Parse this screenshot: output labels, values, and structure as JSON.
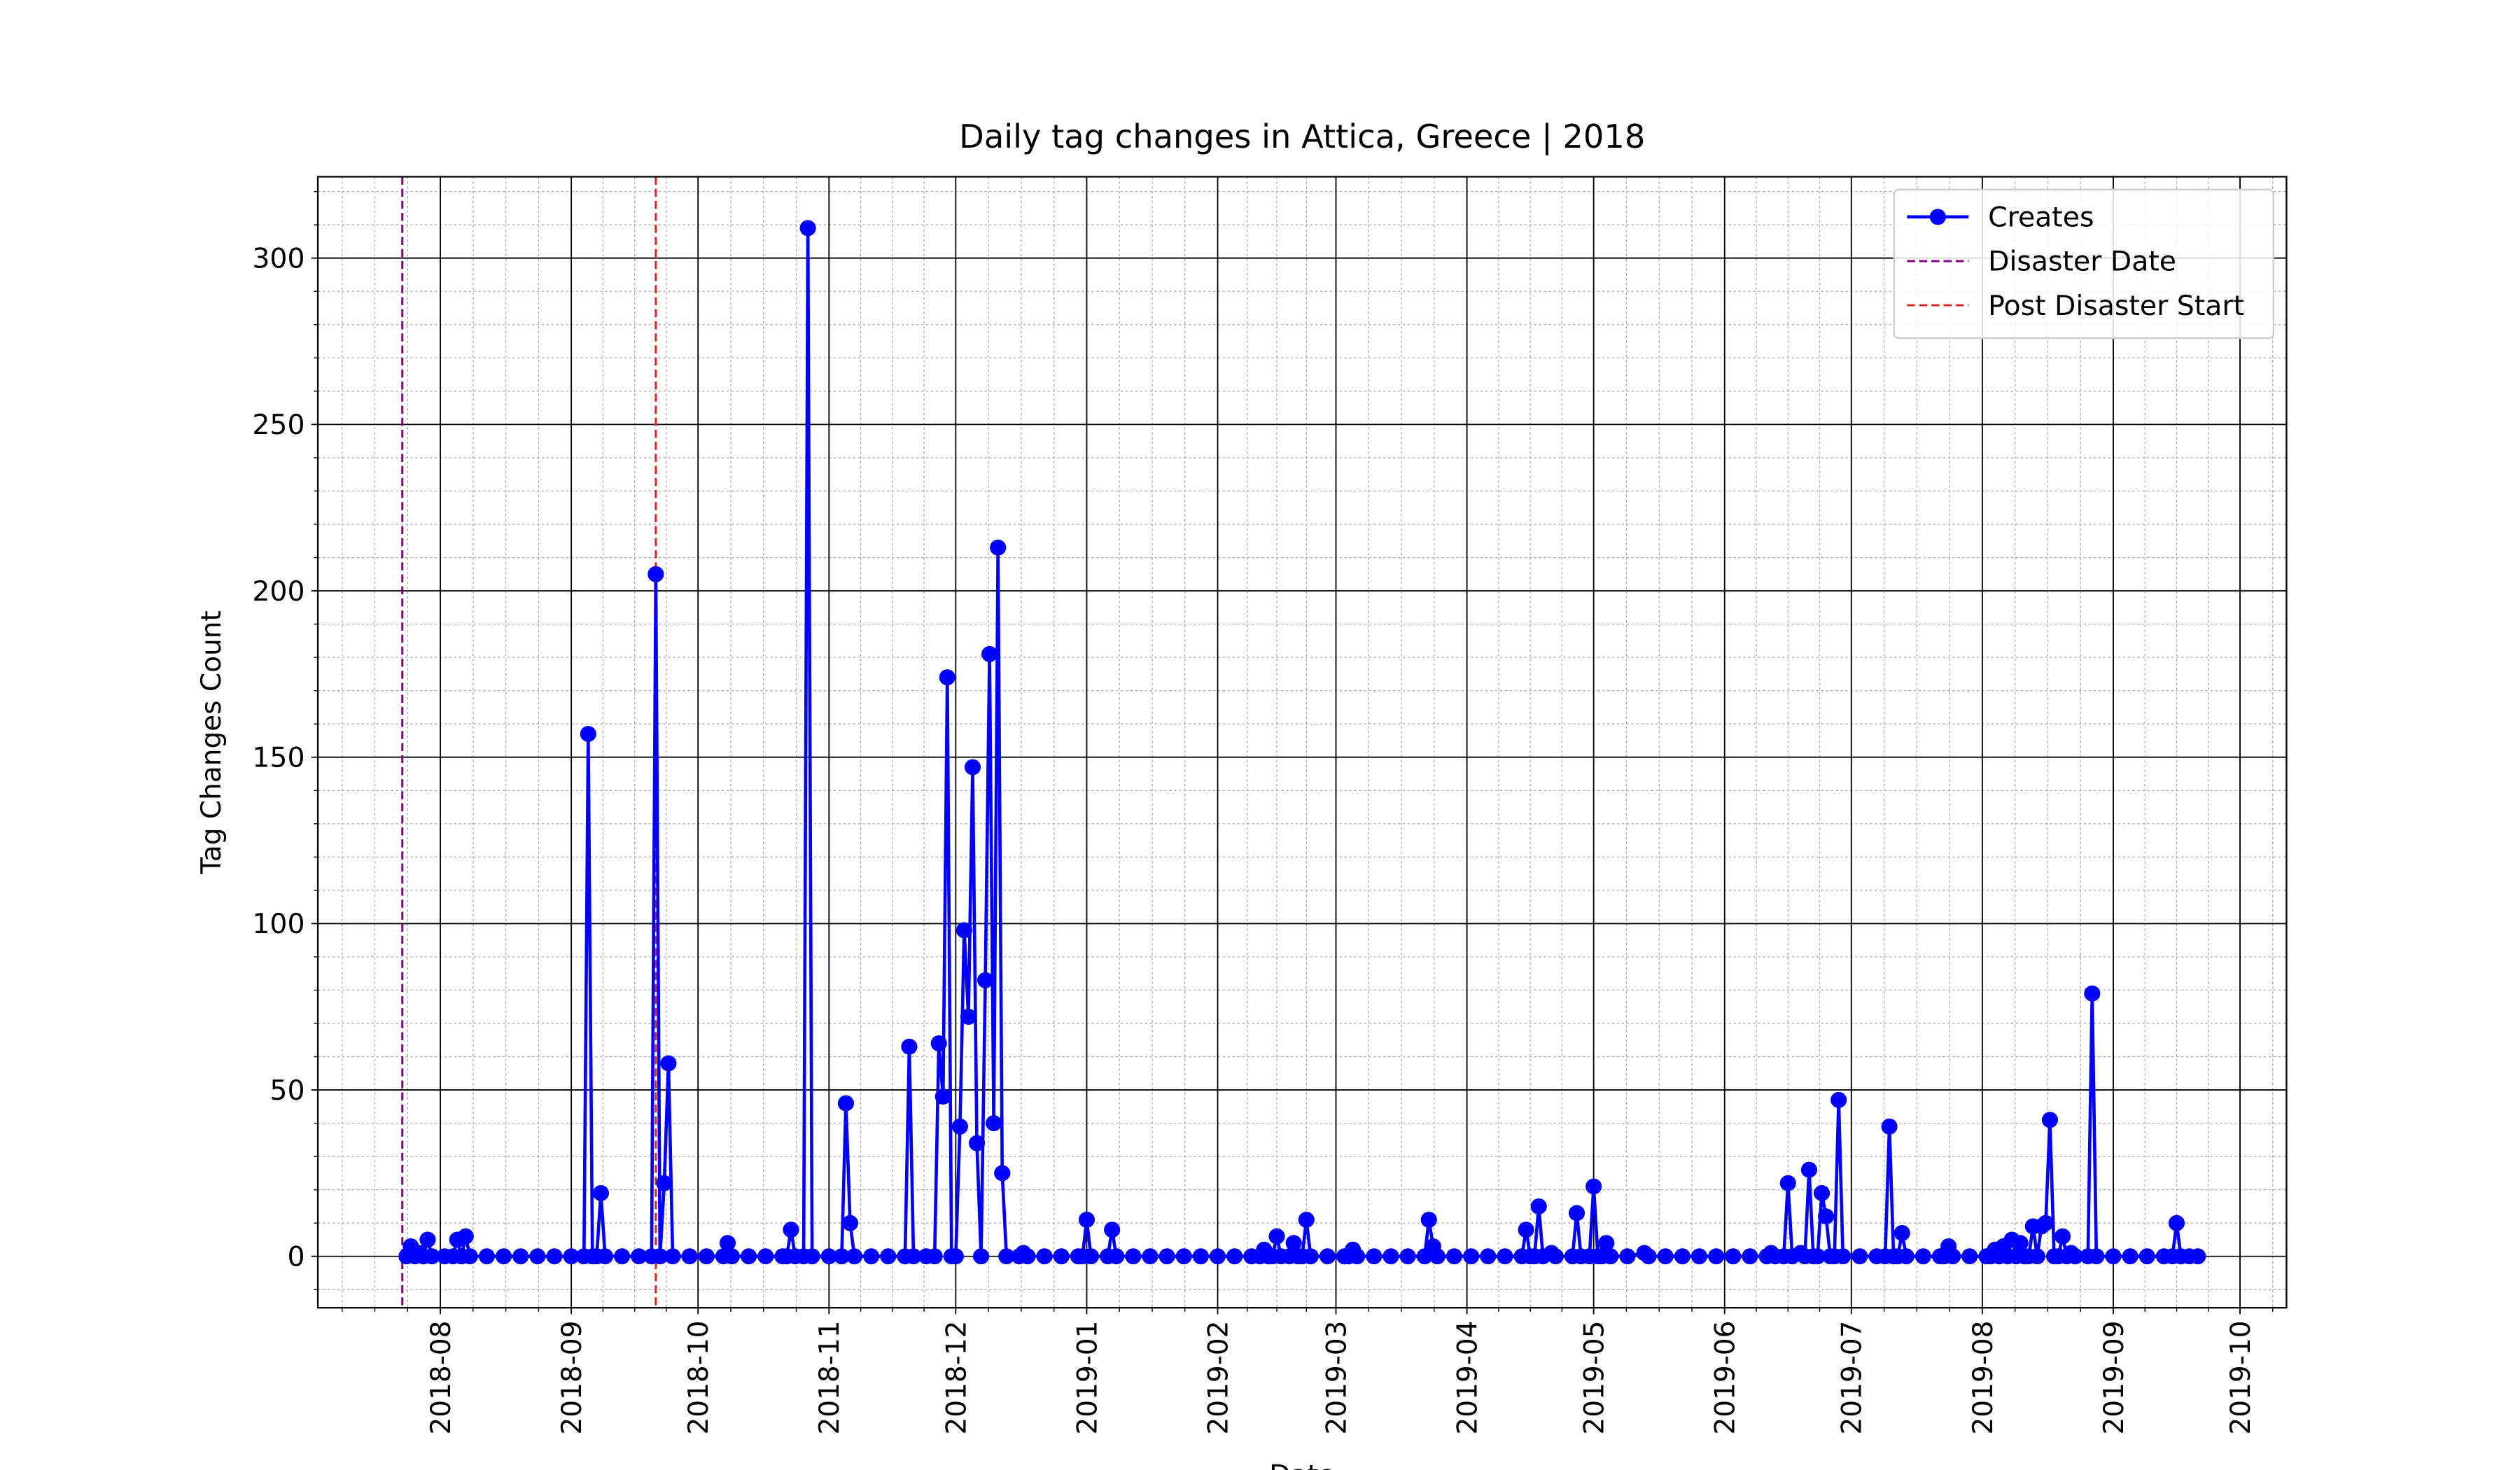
{
  "chart_data": {
    "type": "line",
    "title": "Daily tag changes in Attica, Greece | 2018",
    "x_label": "Date",
    "y_label": "Tag Changes Count",
    "x": [
      "2018-07-24",
      "2018-07-25",
      "2018-07-26",
      "2018-07-27",
      "2018-07-28",
      "2018-07-29",
      "2018-07-30",
      "2018-08-02",
      "2018-08-04",
      "2018-08-05",
      "2018-08-06",
      "2018-08-07",
      "2018-08-08",
      "2018-08-12",
      "2018-08-16",
      "2018-08-20",
      "2018-08-24",
      "2018-08-28",
      "2018-09-01",
      "2018-09-04",
      "2018-09-05",
      "2018-09-06",
      "2018-09-07",
      "2018-09-08",
      "2018-09-09",
      "2018-09-13",
      "2018-09-17",
      "2018-09-20",
      "2018-09-21",
      "2018-09-22",
      "2018-09-23",
      "2018-09-24",
      "2018-09-25",
      "2018-09-29",
      "2018-10-03",
      "2018-10-07",
      "2018-10-08",
      "2018-10-09",
      "2018-10-13",
      "2018-10-17",
      "2018-10-21",
      "2018-10-22",
      "2018-10-23",
      "2018-10-24",
      "2018-10-26",
      "2018-10-27",
      "2018-10-28",
      "2018-11-01",
      "2018-11-04",
      "2018-11-05",
      "2018-11-06",
      "2018-11-07",
      "2018-11-11",
      "2018-11-15",
      "2018-11-19",
      "2018-11-20",
      "2018-11-21",
      "2018-11-24",
      "2018-11-26",
      "2018-11-27",
      "2018-11-28",
      "2018-11-29",
      "2018-11-30",
      "2018-12-01",
      "2018-12-02",
      "2018-12-03",
      "2018-12-04",
      "2018-12-05",
      "2018-12-06",
      "2018-12-07",
      "2018-12-08",
      "2018-12-09",
      "2018-12-10",
      "2018-12-11",
      "2018-12-12",
      "2018-12-13",
      "2018-12-16",
      "2018-12-17",
      "2018-12-18",
      "2018-12-22",
      "2018-12-26",
      "2018-12-30",
      "2018-12-31",
      "2019-01-01",
      "2019-01-02",
      "2019-01-06",
      "2019-01-07",
      "2019-01-08",
      "2019-01-12",
      "2019-01-16",
      "2019-01-20",
      "2019-01-24",
      "2019-01-28",
      "2019-02-01",
      "2019-02-05",
      "2019-02-09",
      "2019-02-11",
      "2019-02-12",
      "2019-02-13",
      "2019-02-14",
      "2019-02-15",
      "2019-02-16",
      "2019-02-18",
      "2019-02-19",
      "2019-02-20",
      "2019-02-21",
      "2019-02-22",
      "2019-02-23",
      "2019-02-27",
      "2019-03-03",
      "2019-03-04",
      "2019-03-05",
      "2019-03-06",
      "2019-03-10",
      "2019-03-14",
      "2019-03-18",
      "2019-03-22",
      "2019-03-23",
      "2019-03-24",
      "2019-03-25",
      "2019-03-29",
      "2019-04-02",
      "2019-04-06",
      "2019-04-10",
      "2019-04-14",
      "2019-04-15",
      "2019-04-16",
      "2019-04-17",
      "2019-04-18",
      "2019-04-19",
      "2019-04-21",
      "2019-04-22",
      "2019-04-26",
      "2019-04-27",
      "2019-04-28",
      "2019-04-30",
      "2019-05-01",
      "2019-05-02",
      "2019-05-03",
      "2019-05-04",
      "2019-05-05",
      "2019-05-09",
      "2019-05-13",
      "2019-05-14",
      "2019-05-18",
      "2019-05-22",
      "2019-05-26",
      "2019-05-30",
      "2019-06-03",
      "2019-06-07",
      "2019-06-11",
      "2019-06-12",
      "2019-06-13",
      "2019-06-15",
      "2019-06-16",
      "2019-06-17",
      "2019-06-19",
      "2019-06-20",
      "2019-06-21",
      "2019-06-22",
      "2019-06-23",
      "2019-06-24",
      "2019-06-25",
      "2019-06-26",
      "2019-06-27",
      "2019-06-28",
      "2019-06-29",
      "2019-07-03",
      "2019-07-07",
      "2019-07-09",
      "2019-07-10",
      "2019-07-11",
      "2019-07-12",
      "2019-07-13",
      "2019-07-14",
      "2019-07-18",
      "2019-07-22",
      "2019-07-23",
      "2019-07-24",
      "2019-07-25",
      "2019-07-29",
      "2019-08-02",
      "2019-08-03",
      "2019-08-04",
      "2019-08-05",
      "2019-08-06",
      "2019-08-07",
      "2019-08-08",
      "2019-08-09",
      "2019-08-10",
      "2019-08-11",
      "2019-08-12",
      "2019-08-13",
      "2019-08-14",
      "2019-08-15",
      "2019-08-16",
      "2019-08-17",
      "2019-08-18",
      "2019-08-19",
      "2019-08-20",
      "2019-08-21",
      "2019-08-22",
      "2019-08-23",
      "2019-08-26",
      "2019-08-27",
      "2019-08-28",
      "2019-09-01",
      "2019-09-05",
      "2019-09-09",
      "2019-09-13",
      "2019-09-15",
      "2019-09-16",
      "2019-09-17",
      "2019-09-19",
      "2019-09-21"
    ],
    "series": [
      {
        "name": "Creates",
        "color": "#0000ff",
        "values": [
          0,
          3,
          0,
          1,
          0,
          5,
          0,
          0,
          0,
          5,
          0,
          6,
          0,
          0,
          0,
          0,
          0,
          0,
          0,
          0,
          157,
          0,
          0,
          19,
          0,
          0,
          0,
          0,
          205,
          0,
          22,
          58,
          0,
          0,
          0,
          0,
          4,
          0,
          0,
          0,
          0,
          0,
          8,
          0,
          0,
          309,
          0,
          0,
          0,
          46,
          10,
          0,
          0,
          0,
          0,
          63,
          0,
          0,
          0,
          64,
          48,
          174,
          0,
          0,
          39,
          98,
          72,
          147,
          34,
          0,
          83,
          181,
          40,
          213,
          25,
          0,
          0,
          1,
          0,
          0,
          0,
          0,
          0,
          11,
          0,
          0,
          8,
          0,
          0,
          0,
          0,
          0,
          0,
          0,
          0,
          0,
          0,
          2,
          0,
          0,
          6,
          0,
          0,
          4,
          0,
          0,
          11,
          0,
          0,
          0,
          0,
          2,
          0,
          0,
          0,
          0,
          0,
          11,
          3,
          0,
          0,
          0,
          0,
          0,
          0,
          8,
          0,
          0,
          15,
          0,
          1,
          0,
          0,
          13,
          0,
          0,
          21,
          0,
          0,
          4,
          0,
          0,
          1,
          0,
          0,
          0,
          0,
          0,
          0,
          0,
          0,
          1,
          0,
          0,
          22,
          0,
          1,
          0,
          26,
          0,
          0,
          19,
          12,
          0,
          0,
          47,
          0,
          0,
          0,
          0,
          39,
          0,
          0,
          7,
          0,
          0,
          0,
          0,
          3,
          0,
          0,
          0,
          0,
          2,
          0,
          3,
          0,
          5,
          0,
          4,
          0,
          0,
          9,
          0,
          9,
          10,
          41,
          0,
          0,
          6,
          0,
          1,
          0,
          0,
          79,
          0,
          0,
          0,
          0,
          0,
          0,
          10,
          0,
          0,
          0
        ]
      }
    ],
    "vlines": [
      {
        "name": "Disaster Date",
        "x": "2018-07-23",
        "color": "#800080"
      },
      {
        "name": "Post Disaster Start",
        "x": "2018-09-21",
        "color": "#d62728"
      }
    ],
    "xlim": [
      "2018-07-03",
      "2019-10-12"
    ],
    "ylim": [
      -15.45,
      324.45
    ],
    "xticks": [
      {
        "value": "2018-08-01",
        "label": "2018-08"
      },
      {
        "value": "2018-09-01",
        "label": "2018-09"
      },
      {
        "value": "2018-10-01",
        "label": "2018-10"
      },
      {
        "value": "2018-11-01",
        "label": "2018-11"
      },
      {
        "value": "2018-12-01",
        "label": "2018-12"
      },
      {
        "value": "2019-01-01",
        "label": "2019-01"
      },
      {
        "value": "2019-02-01",
        "label": "2019-02"
      },
      {
        "value": "2019-03-01",
        "label": "2019-03"
      },
      {
        "value": "2019-04-01",
        "label": "2019-04"
      },
      {
        "value": "2019-05-01",
        "label": "2019-05"
      },
      {
        "value": "2019-06-01",
        "label": "2019-06"
      },
      {
        "value": "2019-07-01",
        "label": "2019-07"
      },
      {
        "value": "2019-08-01",
        "label": "2019-08"
      },
      {
        "value": "2019-09-01",
        "label": "2019-09"
      },
      {
        "value": "2019-10-01",
        "label": "2019-10"
      }
    ],
    "yticks": [
      0,
      50,
      100,
      150,
      200,
      250,
      300
    ],
    "grid": true,
    "minor_grid": true,
    "legend": "upper right"
  }
}
